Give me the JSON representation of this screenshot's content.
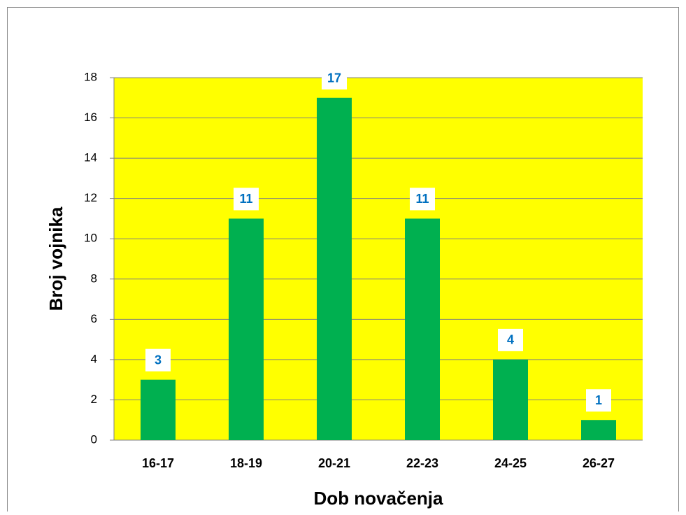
{
  "chart_data": {
    "type": "bar",
    "x_label": "Dob novačenja",
    "y_label": "Broj vojnika",
    "categories": [
      "16-17",
      "18-19",
      "20-21",
      "22-23",
      "24-25",
      "26-27"
    ],
    "values": [
      3,
      11,
      17,
      11,
      4,
      1
    ],
    "color": "#00b050",
    "plot_background": "#ffff00",
    "data_label_color": "#0070c0",
    "ylim": [
      0,
      18
    ],
    "yticks": [
      0,
      2,
      4,
      6,
      8,
      10,
      12,
      14,
      16,
      18
    ],
    "grid": true
  }
}
